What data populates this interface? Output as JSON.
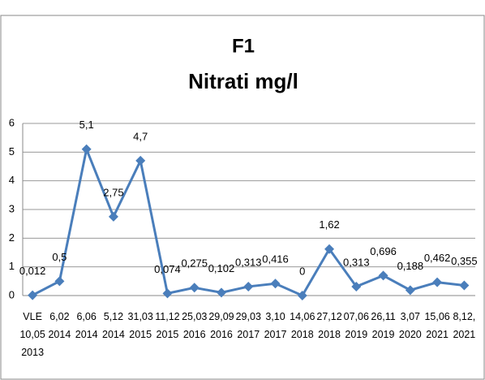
{
  "chart_data": {
    "type": "line",
    "title": "F1",
    "subtitle": "Nitrati mg/l",
    "categories": [
      "VLE 10,05 2013",
      "6,02 2014",
      "6,06 2014",
      "5,12 2014",
      "31,03 2015",
      "11,12 2015",
      "25,03 2016",
      "29,09 2016",
      "29,03 2017",
      "3,10 2017",
      "14,06 2018",
      "27,12 2018",
      "07,06 2019",
      "26,11 2019",
      "3,07 2020",
      "15,06 2021",
      "8,12, 2021"
    ],
    "series": [
      {
        "name": "F1",
        "color": "#4a7ebb",
        "values": [
          0.012,
          0.5,
          5.1,
          2.75,
          4.7,
          0.074,
          0.275,
          0.102,
          0.313,
          0.416,
          0,
          1.62,
          0.313,
          0.696,
          0.188,
          0.462,
          0.355
        ],
        "value_labels": [
          "0,012",
          "0,5",
          "5,1",
          "2,75",
          "4,7",
          "0,074",
          "0,275",
          "0,102",
          "0,313",
          "0,416",
          "0",
          "1,62",
          "0,313",
          "0,696",
          "0,188",
          "0,462",
          "0,355"
        ]
      }
    ],
    "ylim": [
      0,
      6
    ],
    "yticks": [
      0,
      1,
      2,
      3,
      4,
      5,
      6
    ],
    "grid": true
  }
}
